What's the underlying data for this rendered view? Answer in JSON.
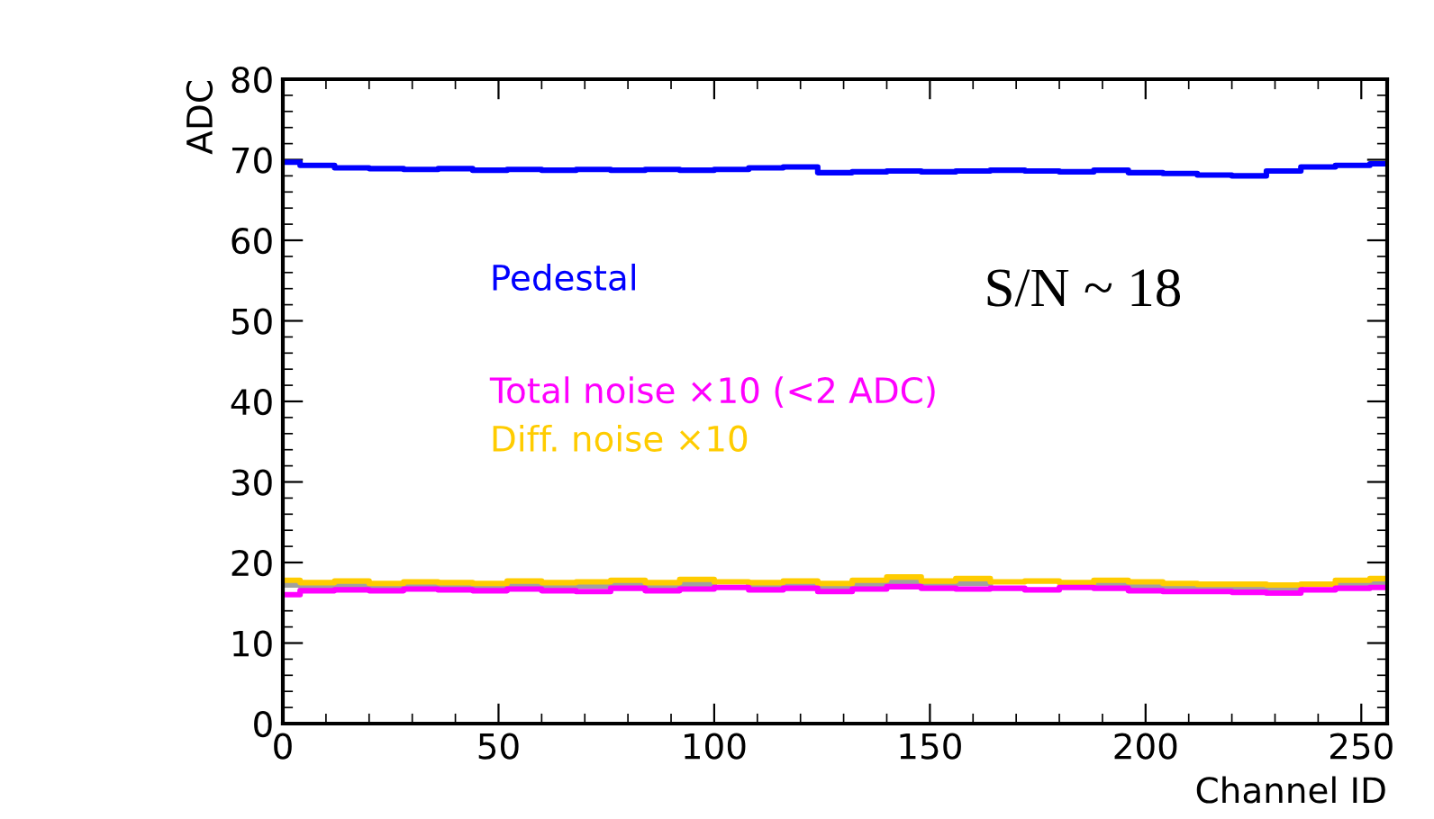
{
  "chart_data": {
    "type": "step",
    "xlabel": "Channel ID",
    "ylabel": "ADC",
    "x": [
      0,
      8,
      16,
      24,
      32,
      40,
      48,
      56,
      64,
      72,
      80,
      88,
      96,
      104,
      112,
      120,
      128,
      136,
      144,
      152,
      160,
      168,
      176,
      184,
      192,
      200,
      208,
      216,
      224,
      232,
      240,
      248,
      256
    ],
    "series": [
      {
        "name": "Pedestal",
        "color": "#0000ff",
        "values": [
          69.7,
          69.3,
          69.0,
          68.9,
          68.8,
          68.9,
          68.7,
          68.8,
          68.7,
          68.8,
          68.7,
          68.8,
          68.7,
          68.8,
          69.0,
          69.1,
          68.4,
          68.5,
          68.6,
          68.5,
          68.6,
          68.7,
          68.6,
          68.5,
          68.7,
          68.4,
          68.3,
          68.1,
          68.0,
          68.6,
          69.1,
          69.3,
          69.5
        ]
      },
      {
        "color": "#a0a0a0",
        "values": [
          17.2,
          17.1,
          17.2,
          17.0,
          17.1,
          17.0,
          17.0,
          17.2,
          17.0,
          17.1,
          17.3,
          17.0,
          17.3,
          null,
          17.0,
          17.2,
          16.9,
          17.3,
          17.6,
          17.2,
          17.4,
          null,
          null,
          null,
          17.3,
          17.1,
          16.9,
          16.9,
          16.8,
          16.8,
          null,
          17.3,
          17.4
        ]
      },
      {
        "name": "Diff. noise ×10",
        "color": "#ffcc00",
        "values": [
          17.8,
          17.5,
          17.7,
          17.4,
          17.6,
          17.5,
          17.4,
          17.7,
          17.5,
          17.6,
          17.8,
          17.5,
          17.9,
          17.6,
          17.5,
          17.7,
          17.4,
          17.8,
          18.2,
          17.7,
          18.0,
          17.6,
          17.7,
          17.5,
          17.8,
          17.6,
          17.4,
          17.3,
          17.3,
          17.2,
          17.3,
          17.8,
          18.0
        ]
      },
      {
        "name": "Total noise ×10 (<2 ADC)",
        "color": "#ff00ff",
        "values": [
          16.0,
          16.5,
          16.6,
          16.5,
          16.7,
          16.6,
          16.5,
          16.7,
          16.5,
          16.4,
          16.8,
          16.5,
          16.7,
          16.9,
          16.6,
          16.8,
          16.4,
          16.7,
          17.0,
          16.8,
          16.7,
          16.8,
          16.6,
          16.9,
          16.8,
          16.5,
          16.4,
          16.4,
          16.3,
          16.2,
          16.6,
          16.8,
          16.9
        ]
      }
    ],
    "annotations": [
      "S/N ~ 18"
    ],
    "xlim": [
      0,
      256
    ],
    "ylim": [
      0,
      80
    ],
    "xticks": [
      0,
      50,
      100,
      150,
      200,
      250
    ],
    "yticks": [
      0,
      10,
      20,
      30,
      40,
      50,
      60,
      70,
      80
    ],
    "grid": false,
    "legend": false
  }
}
